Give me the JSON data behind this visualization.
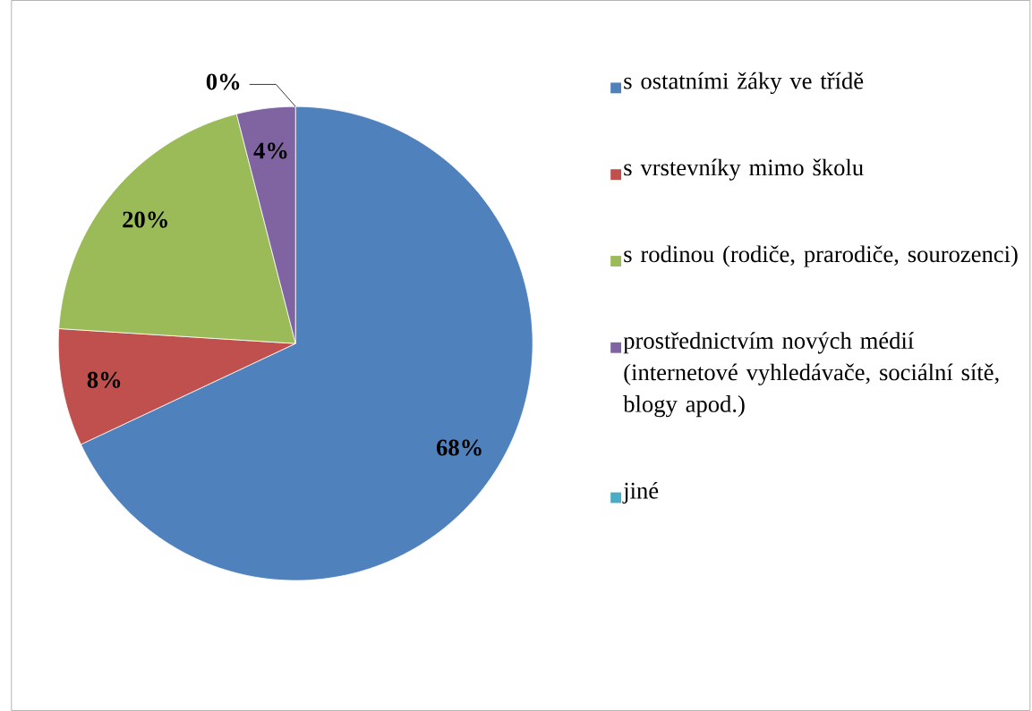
{
  "chart_data": {
    "type": "pie",
    "categories": [
      "s ostatními žáky ve třídě",
      "s vrstevníky mimo školu",
      "s rodinou (rodiče, prarodiče, sourozenci)",
      "prostřednictvím nových médií (internetové vyhledávače, sociální sítě, blogy apod.)",
      "jiné"
    ],
    "values": [
      68,
      8,
      20,
      4,
      0
    ],
    "value_labels": [
      "68%",
      "8%",
      "20%",
      "4%",
      "0%"
    ],
    "colors": [
      "#4f81bd",
      "#c0504d",
      "#9bbb59",
      "#8064a2",
      "#4bacc6"
    ],
    "legend": "right"
  }
}
